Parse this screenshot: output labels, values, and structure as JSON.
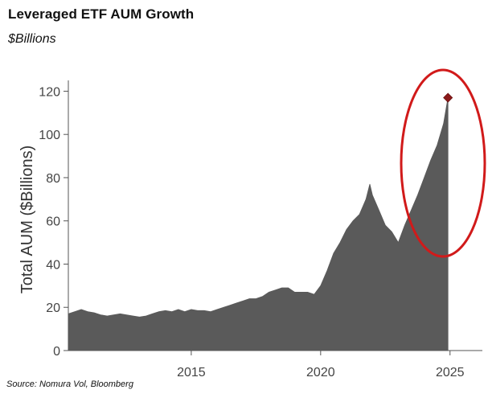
{
  "header": {
    "title": "Leveraged ETF AUM Growth",
    "subtitle": "$Billions"
  },
  "footer": {
    "source": "Source: Nomura Vol, Bloomberg"
  },
  "chart_data": {
    "type": "area",
    "title": "Leveraged ETF AUM Growth",
    "subtitle": "$Billions",
    "xlabel": "",
    "ylabel": "Total AUM ($Billions)",
    "xlim": [
      2010.25,
      2026.25
    ],
    "ylim": [
      0,
      125
    ],
    "x_ticks": [
      2015,
      2020,
      2025
    ],
    "y_ticks": [
      0,
      20,
      40,
      60,
      80,
      100,
      120
    ],
    "grid": false,
    "legend": "none",
    "fill_color": "#5a5a5a",
    "highlight_color": "#d11a1a",
    "marker_color": "#8b1a1a",
    "series": [
      {
        "x": [
          2010.25,
          2010.5,
          2010.75,
          2011.0,
          2011.25,
          2011.5,
          2011.75,
          2012.0,
          2012.25,
          2012.5,
          2012.75,
          2013.0,
          2013.25,
          2013.5,
          2013.75,
          2014.0,
          2014.25,
          2014.5,
          2014.75,
          2015.0,
          2015.25,
          2015.5,
          2015.75,
          2016.0,
          2016.25,
          2016.5,
          2016.75,
          2017.0,
          2017.25,
          2017.5,
          2017.75,
          2018.0,
          2018.25,
          2018.5,
          2018.75,
          2019.0,
          2019.25,
          2019.5,
          2019.75,
          2020.0,
          2020.25,
          2020.5,
          2020.75,
          2021.0,
          2021.25,
          2021.5,
          2021.75,
          2021.9,
          2022.0,
          2022.25,
          2022.5,
          2022.75,
          2023.0,
          2023.25,
          2023.5,
          2023.75,
          2024.0,
          2024.25,
          2024.5,
          2024.75,
          2024.92
        ],
        "values": [
          17,
          18,
          19,
          18,
          17.5,
          16.5,
          16,
          16.5,
          17,
          16.5,
          16,
          15.5,
          16,
          17,
          18,
          18.5,
          18,
          19,
          18,
          19,
          18.5,
          18.5,
          18,
          19,
          20,
          21,
          22,
          23,
          24,
          24,
          25,
          27,
          28,
          29,
          29,
          27,
          27,
          27,
          26,
          30,
          37,
          45,
          50,
          56,
          60,
          63,
          70,
          77,
          72,
          65,
          58,
          55,
          50,
          58,
          65,
          72,
          80,
          88,
          95,
          105,
          117
        ]
      }
    ],
    "highlight_point": {
      "x": 2024.92,
      "y": 117
    }
  }
}
